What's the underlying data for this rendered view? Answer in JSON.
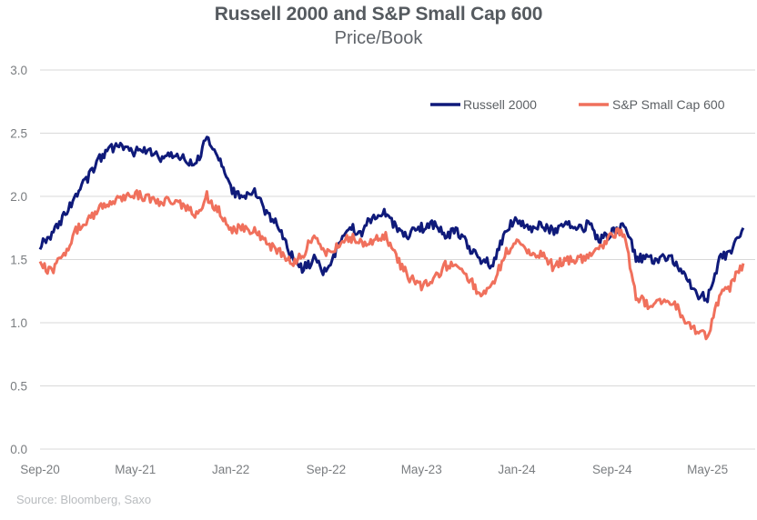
{
  "chart_data": {
    "type": "line",
    "title": "Russell 2000 and S&P Small Cap 600",
    "subtitle": "Price/Book",
    "xlabel": "",
    "ylabel": "",
    "ylim": [
      0,
      3.0
    ],
    "yticks": [
      "0.0",
      "0.5",
      "1.0",
      "1.5",
      "2.0",
      "2.5",
      "3.0"
    ],
    "xticks": [
      "Sep-20",
      "May-21",
      "Jan-22",
      "Sep-22",
      "May-23",
      "Jan-24",
      "Sep-24",
      "May-25"
    ],
    "grid": true,
    "legend_position": "top-right",
    "x_start": "Sep-20",
    "x": [
      "Sep-20",
      "Oct-20",
      "Nov-20",
      "Dec-20",
      "Jan-21",
      "Feb-21",
      "Mar-21",
      "Apr-21",
      "May-21",
      "Jun-21",
      "Jul-21",
      "Aug-21",
      "Sep-21",
      "Oct-21",
      "Nov-21",
      "Dec-21",
      "Jan-22",
      "Feb-22",
      "Mar-22",
      "Apr-22",
      "May-22",
      "Jun-22",
      "Jul-22",
      "Aug-22",
      "Sep-22",
      "Oct-22",
      "Nov-22",
      "Dec-22",
      "Jan-23",
      "Feb-23",
      "Mar-23",
      "Apr-23",
      "May-23",
      "Jun-23",
      "Jul-23",
      "Aug-23",
      "Sep-23",
      "Oct-23",
      "Nov-23",
      "Dec-23",
      "Jan-24",
      "Feb-24",
      "Mar-24",
      "Apr-24",
      "May-24",
      "Jun-24",
      "Jul-24",
      "Aug-24",
      "Sep-24",
      "Oct-24",
      "Nov-24",
      "Dec-24",
      "Jan-25",
      "Feb-25",
      "Mar-25",
      "Apr-25",
      "May-25",
      "Jun-25",
      "Jul-25",
      "Aug-25"
    ],
    "series": [
      {
        "name": "Russell 2000",
        "color": "#0f1a7a",
        "values": [
          1.62,
          1.7,
          1.85,
          2.0,
          2.15,
          2.3,
          2.38,
          2.4,
          2.35,
          2.38,
          2.3,
          2.33,
          2.3,
          2.25,
          2.45,
          2.3,
          2.05,
          1.98,
          2.05,
          1.85,
          1.78,
          1.55,
          1.42,
          1.5,
          1.38,
          1.62,
          1.75,
          1.72,
          1.85,
          1.88,
          1.72,
          1.7,
          1.75,
          1.78,
          1.7,
          1.72,
          1.6,
          1.5,
          1.45,
          1.72,
          1.82,
          1.75,
          1.78,
          1.72,
          1.8,
          1.72,
          1.78,
          1.65,
          1.72,
          1.78,
          1.52,
          1.5,
          1.5,
          1.52,
          1.38,
          1.22,
          1.2,
          1.5,
          1.58,
          1.75
        ]
      },
      {
        "name": "S&P Small Cap 600",
        "color": "#f0705c",
        "values": [
          1.45,
          1.4,
          1.55,
          1.72,
          1.82,
          1.9,
          1.95,
          1.98,
          2.02,
          1.98,
          1.95,
          1.98,
          1.92,
          1.85,
          2.0,
          1.88,
          1.72,
          1.75,
          1.72,
          1.62,
          1.58,
          1.48,
          1.52,
          1.72,
          1.55,
          1.6,
          1.68,
          1.62,
          1.65,
          1.68,
          1.5,
          1.35,
          1.28,
          1.35,
          1.45,
          1.48,
          1.35,
          1.22,
          1.3,
          1.55,
          1.65,
          1.55,
          1.55,
          1.45,
          1.5,
          1.48,
          1.55,
          1.58,
          1.7,
          1.72,
          1.22,
          1.15,
          1.15,
          1.18,
          1.05,
          0.92,
          0.9,
          1.2,
          1.3,
          1.47
        ]
      }
    ]
  },
  "source_note": "Source: Bloomberg, Saxo"
}
